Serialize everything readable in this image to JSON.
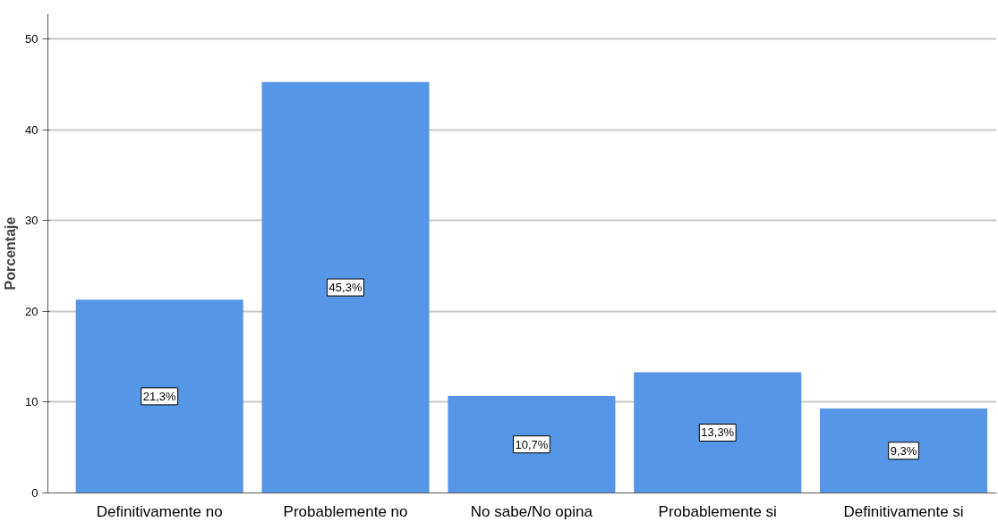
{
  "chart_data": {
    "type": "bar",
    "ylabel": "Porcentaje",
    "categories": [
      "Definitivamente no",
      "Probablemente no",
      "No sabe/No opina",
      "Probablemente si",
      "Definitivamente si"
    ],
    "values": [
      21.3,
      45.3,
      10.7,
      13.3,
      9.3
    ],
    "value_labels": [
      "21,3%",
      "45,3%",
      "10,7%",
      "13,3%",
      "9,3%"
    ],
    "color": "#5596e6",
    "ylim": [
      0,
      52.8
    ],
    "yticks": [
      0,
      10,
      20,
      30,
      40,
      50
    ],
    "grid": "y"
  }
}
